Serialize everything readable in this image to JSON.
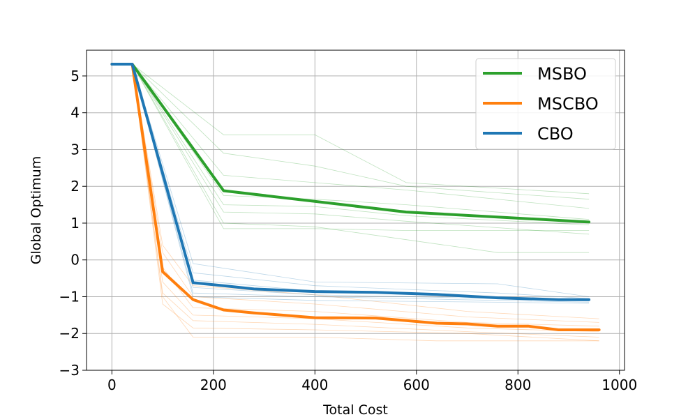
{
  "chart_data": {
    "type": "line",
    "title": "",
    "xlabel": "Total Cost",
    "ylabel": "Global Optimum",
    "xlim": [
      -50,
      1010
    ],
    "ylim": [
      -3,
      5.7
    ],
    "xticks": [
      0,
      200,
      400,
      600,
      800,
      1000
    ],
    "yticks": [
      -3,
      -2,
      -1,
      0,
      1,
      2,
      3,
      4,
      5
    ],
    "grid": true,
    "legend_position": "top-right",
    "series": [
      {
        "name": "MSBO",
        "color": "#2ca02c",
        "x": [
          0,
          40,
          220,
          580,
          940
        ],
        "y": [
          5.32,
          5.32,
          1.88,
          1.3,
          1.03
        ],
        "runs": [
          {
            "x": [
              0,
              40,
              220,
              400,
              580,
              940
            ],
            "y": [
              5.32,
              5.32,
              3.4,
              3.4,
              2.1,
              1.8
            ]
          },
          {
            "x": [
              0,
              40,
              220,
              400,
              580,
              940
            ],
            "y": [
              5.32,
              5.32,
              2.9,
              2.55,
              2.0,
              1.65
            ]
          },
          {
            "x": [
              0,
              40,
              220,
              400,
              580,
              940
            ],
            "y": [
              5.32,
              5.32,
              2.3,
              2.1,
              1.9,
              1.4
            ]
          },
          {
            "x": [
              0,
              40,
              220,
              400,
              580,
              940
            ],
            "y": [
              5.32,
              5.32,
              1.75,
              1.65,
              1.5,
              1.1
            ]
          },
          {
            "x": [
              0,
              40,
              220,
              400,
              580,
              940
            ],
            "y": [
              5.32,
              5.32,
              1.5,
              1.45,
              1.2,
              0.95
            ]
          },
          {
            "x": [
              0,
              40,
              220,
              400,
              580,
              940
            ],
            "y": [
              5.32,
              5.32,
              1.3,
              1.25,
              1.05,
              0.7
            ]
          },
          {
            "x": [
              0,
              40,
              220,
              400,
              760,
              940
            ],
            "y": [
              5.32,
              5.32,
              1.0,
              0.9,
              0.2,
              0.2
            ]
          },
          {
            "x": [
              0,
              40,
              220,
              400,
              580,
              940
            ],
            "y": [
              5.32,
              5.32,
              0.85,
              0.85,
              0.8,
              0.8
            ]
          }
        ]
      },
      {
        "name": "MSCBO",
        "color": "#ff7f0e",
        "x": [
          0,
          40,
          100,
          160,
          220,
          280,
          400,
          520,
          580,
          640,
          700,
          760,
          820,
          880,
          960
        ],
        "y": [
          5.32,
          5.32,
          -0.32,
          -1.08,
          -1.36,
          -1.44,
          -1.57,
          -1.58,
          -1.65,
          -1.72,
          -1.74,
          -1.8,
          -1.8,
          -1.9,
          -1.9
        ],
        "runs": [
          {
            "x": [
              0,
              40,
              100,
              160,
              400,
              700,
              960
            ],
            "y": [
              5.32,
              5.32,
              0.4,
              -0.7,
              -0.95,
              -1.4,
              -1.6
            ]
          },
          {
            "x": [
              0,
              40,
              100,
              160,
              400,
              700,
              960
            ],
            "y": [
              5.32,
              5.32,
              0.2,
              -1.0,
              -1.2,
              -1.55,
              -1.7
            ]
          },
          {
            "x": [
              0,
              40,
              100,
              160,
              400,
              700,
              960
            ],
            "y": [
              5.32,
              5.32,
              -0.2,
              -1.3,
              -1.4,
              -1.7,
              -1.8
            ]
          },
          {
            "x": [
              0,
              40,
              100,
              160,
              400,
              700,
              960
            ],
            "y": [
              5.32,
              5.32,
              -0.6,
              -1.5,
              -1.6,
              -1.85,
              -1.95
            ]
          },
          {
            "x": [
              0,
              40,
              100,
              160,
              400,
              700,
              960
            ],
            "y": [
              5.32,
              5.32,
              -0.9,
              -1.65,
              -1.75,
              -1.95,
              -2.1
            ]
          },
          {
            "x": [
              0,
              40,
              100,
              160,
              400,
              700,
              960
            ],
            "y": [
              5.32,
              5.32,
              -1.2,
              -1.85,
              -1.9,
              -2.0,
              -2.2
            ]
          },
          {
            "x": [
              0,
              40,
              100,
              160,
              400,
              640,
              960
            ],
            "y": [
              5.32,
              5.32,
              -1.0,
              -2.1,
              -2.1,
              -2.2,
              -2.2
            ]
          }
        ]
      },
      {
        "name": "CBO",
        "color": "#1f77b4",
        "x": [
          0,
          40,
          160,
          220,
          280,
          400,
          520,
          640,
          760,
          880,
          940
        ],
        "y": [
          5.32,
          5.32,
          -0.62,
          -0.7,
          -0.79,
          -0.86,
          -0.88,
          -0.94,
          -1.03,
          -1.08,
          -1.08
        ],
        "runs": [
          {
            "x": [
              0,
              40,
              160,
              400,
              760,
              940
            ],
            "y": [
              5.32,
              5.32,
              -0.1,
              -0.6,
              -0.65,
              -1.0
            ]
          },
          {
            "x": [
              0,
              40,
              160,
              400,
              760,
              940
            ],
            "y": [
              5.32,
              5.32,
              -0.35,
              -0.7,
              -0.9,
              -1.05
            ]
          },
          {
            "x": [
              0,
              40,
              160,
              400,
              760,
              940
            ],
            "y": [
              5.32,
              5.32,
              -0.55,
              -0.85,
              -1.0,
              -1.1
            ]
          },
          {
            "x": [
              0,
              40,
              160,
              400,
              760,
              940
            ],
            "y": [
              5.32,
              5.32,
              -0.75,
              -0.95,
              -1.05,
              -1.12
            ]
          },
          {
            "x": [
              0,
              40,
              160,
              400,
              760,
              940
            ],
            "y": [
              5.32,
              5.32,
              -0.9,
              -1.0,
              -1.1,
              -1.15
            ]
          },
          {
            "x": [
              0,
              40,
              160,
              400,
              760,
              940
            ],
            "y": [
              5.32,
              5.32,
              -1.0,
              -1.1,
              -1.15,
              -1.18
            ]
          }
        ]
      }
    ]
  }
}
